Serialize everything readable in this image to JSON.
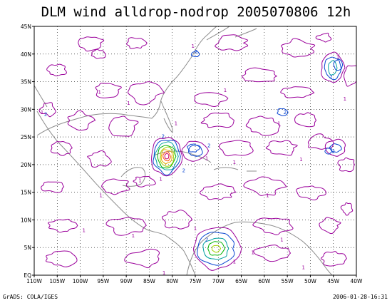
{
  "title": "DLM wind alldrop-nodrop 2005070806 12h",
  "footer": {
    "left": "GrADS: COLA/IGES",
    "right": "2006-01-28-16:31"
  },
  "colors": {
    "coast": "#8c8c8c",
    "grid": "#000000",
    "c1": "#9b009b",
    "c2": "#0a46d2",
    "c3": "#00a0a0",
    "c4": "#00b400",
    "c5": "#a0d200",
    "c6": "#e6aa00",
    "c7": "#ff5000",
    "c8": "#c80064"
  },
  "chart_data": {
    "type": "contour map",
    "x_axis": {
      "range": [
        -110,
        -40
      ],
      "ticks": [
        -110,
        -105,
        -100,
        -95,
        -90,
        -85,
        -80,
        -75,
        -70,
        -65,
        -60,
        -55,
        -50,
        -45,
        -40
      ],
      "tick_labels": [
        "110W",
        "105W",
        "100W",
        "95W",
        "90W",
        "85W",
        "80W",
        "75W",
        "70W",
        "65W",
        "60W",
        "55W",
        "50W",
        "45W",
        "40W"
      ]
    },
    "y_axis": {
      "range": [
        0,
        45
      ],
      "ticks": [
        0,
        5,
        10,
        15,
        20,
        25,
        30,
        35,
        40,
        45
      ],
      "tick_labels": [
        "EQ",
        "5N",
        "10N",
        "15N",
        "20N",
        "25N",
        "30N",
        "35N",
        "40N",
        "45N"
      ]
    },
    "grid": true,
    "contour_levels": [
      1,
      2,
      3,
      4,
      5,
      6,
      7,
      8
    ],
    "features": [
      {
        "name": "hurricane-core",
        "lon": -81.2,
        "lat": 21.5,
        "levels": [
          1,
          2,
          3,
          4,
          5,
          6,
          7,
          8
        ]
      },
      {
        "name": "itcz-max",
        "lon": -70.5,
        "lat": 4.8,
        "levels": [
          1,
          2,
          3,
          4,
          5
        ]
      },
      {
        "name": "north-atlantic-max",
        "lon": -45.2,
        "lat": 37.5,
        "levels": [
          1,
          2,
          3
        ]
      },
      {
        "name": "gulf-anomaly",
        "lon": -75.0,
        "lat": 22.5,
        "levels": [
          1,
          2
        ]
      },
      {
        "name": "east-atlantic-anomaly",
        "lon": -44.5,
        "lat": 23.0,
        "levels": [
          1,
          2
        ]
      }
    ],
    "contour_labels": [
      {
        "text": "1",
        "lon": -75.5,
        "lat": 41.5
      },
      {
        "text": "2",
        "lon": -74.8,
        "lat": 40.5
      },
      {
        "text": "1",
        "lon": -68.5,
        "lat": 33.5
      },
      {
        "text": "1",
        "lon": -95.8,
        "lat": 33.2
      },
      {
        "text": "1",
        "lon": -89.5,
        "lat": 31.2
      },
      {
        "text": "1",
        "lon": -108.3,
        "lat": 29.5
      },
      {
        "text": "2",
        "lon": -107.5,
        "lat": 29.2
      },
      {
        "text": "1",
        "lon": -79.2,
        "lat": 27.5
      },
      {
        "text": "2",
        "lon": -82.0,
        "lat": 25.2
      },
      {
        "text": "2",
        "lon": -77.5,
        "lat": 19.0
      },
      {
        "text": "1",
        "lon": -87.0,
        "lat": 17.2
      },
      {
        "text": "1",
        "lon": -82.5,
        "lat": 17.5
      },
      {
        "text": "2",
        "lon": -72.0,
        "lat": 23.5
      },
      {
        "text": "1",
        "lon": -72.5,
        "lat": 21.2
      },
      {
        "text": "1",
        "lon": -66.5,
        "lat": 20.5
      },
      {
        "text": "2",
        "lon": -55.5,
        "lat": 29.5
      },
      {
        "text": "1",
        "lon": -56.8,
        "lat": 27.5
      },
      {
        "text": "1",
        "lon": -52.0,
        "lat": 21.0
      },
      {
        "text": "2",
        "lon": -45.0,
        "lat": 22.5
      },
      {
        "text": "2",
        "lon": -45.5,
        "lat": 36.0
      },
      {
        "text": "1",
        "lon": -44.0,
        "lat": 39.5
      },
      {
        "text": "1",
        "lon": -42.5,
        "lat": 32.0
      },
      {
        "text": "1",
        "lon": -59.3,
        "lat": 14.5
      },
      {
        "text": "1",
        "lon": -95.5,
        "lat": 14.5
      },
      {
        "text": "1",
        "lon": -99.2,
        "lat": 8.2
      },
      {
        "text": "1",
        "lon": -88.5,
        "lat": 7.2
      },
      {
        "text": "1",
        "lon": -75.0,
        "lat": 8.5
      },
      {
        "text": "2",
        "lon": -72.5,
        "lat": 6.5
      },
      {
        "text": "1",
        "lon": -56.2,
        "lat": 6.5
      },
      {
        "text": "1",
        "lon": -62.5,
        "lat": 4.2
      },
      {
        "text": "1",
        "lon": -66.5,
        "lat": 2.5
      },
      {
        "text": "1",
        "lon": -51.5,
        "lat": 1.5
      },
      {
        "text": "1",
        "lon": -81.8,
        "lat": 0.5
      }
    ]
  }
}
